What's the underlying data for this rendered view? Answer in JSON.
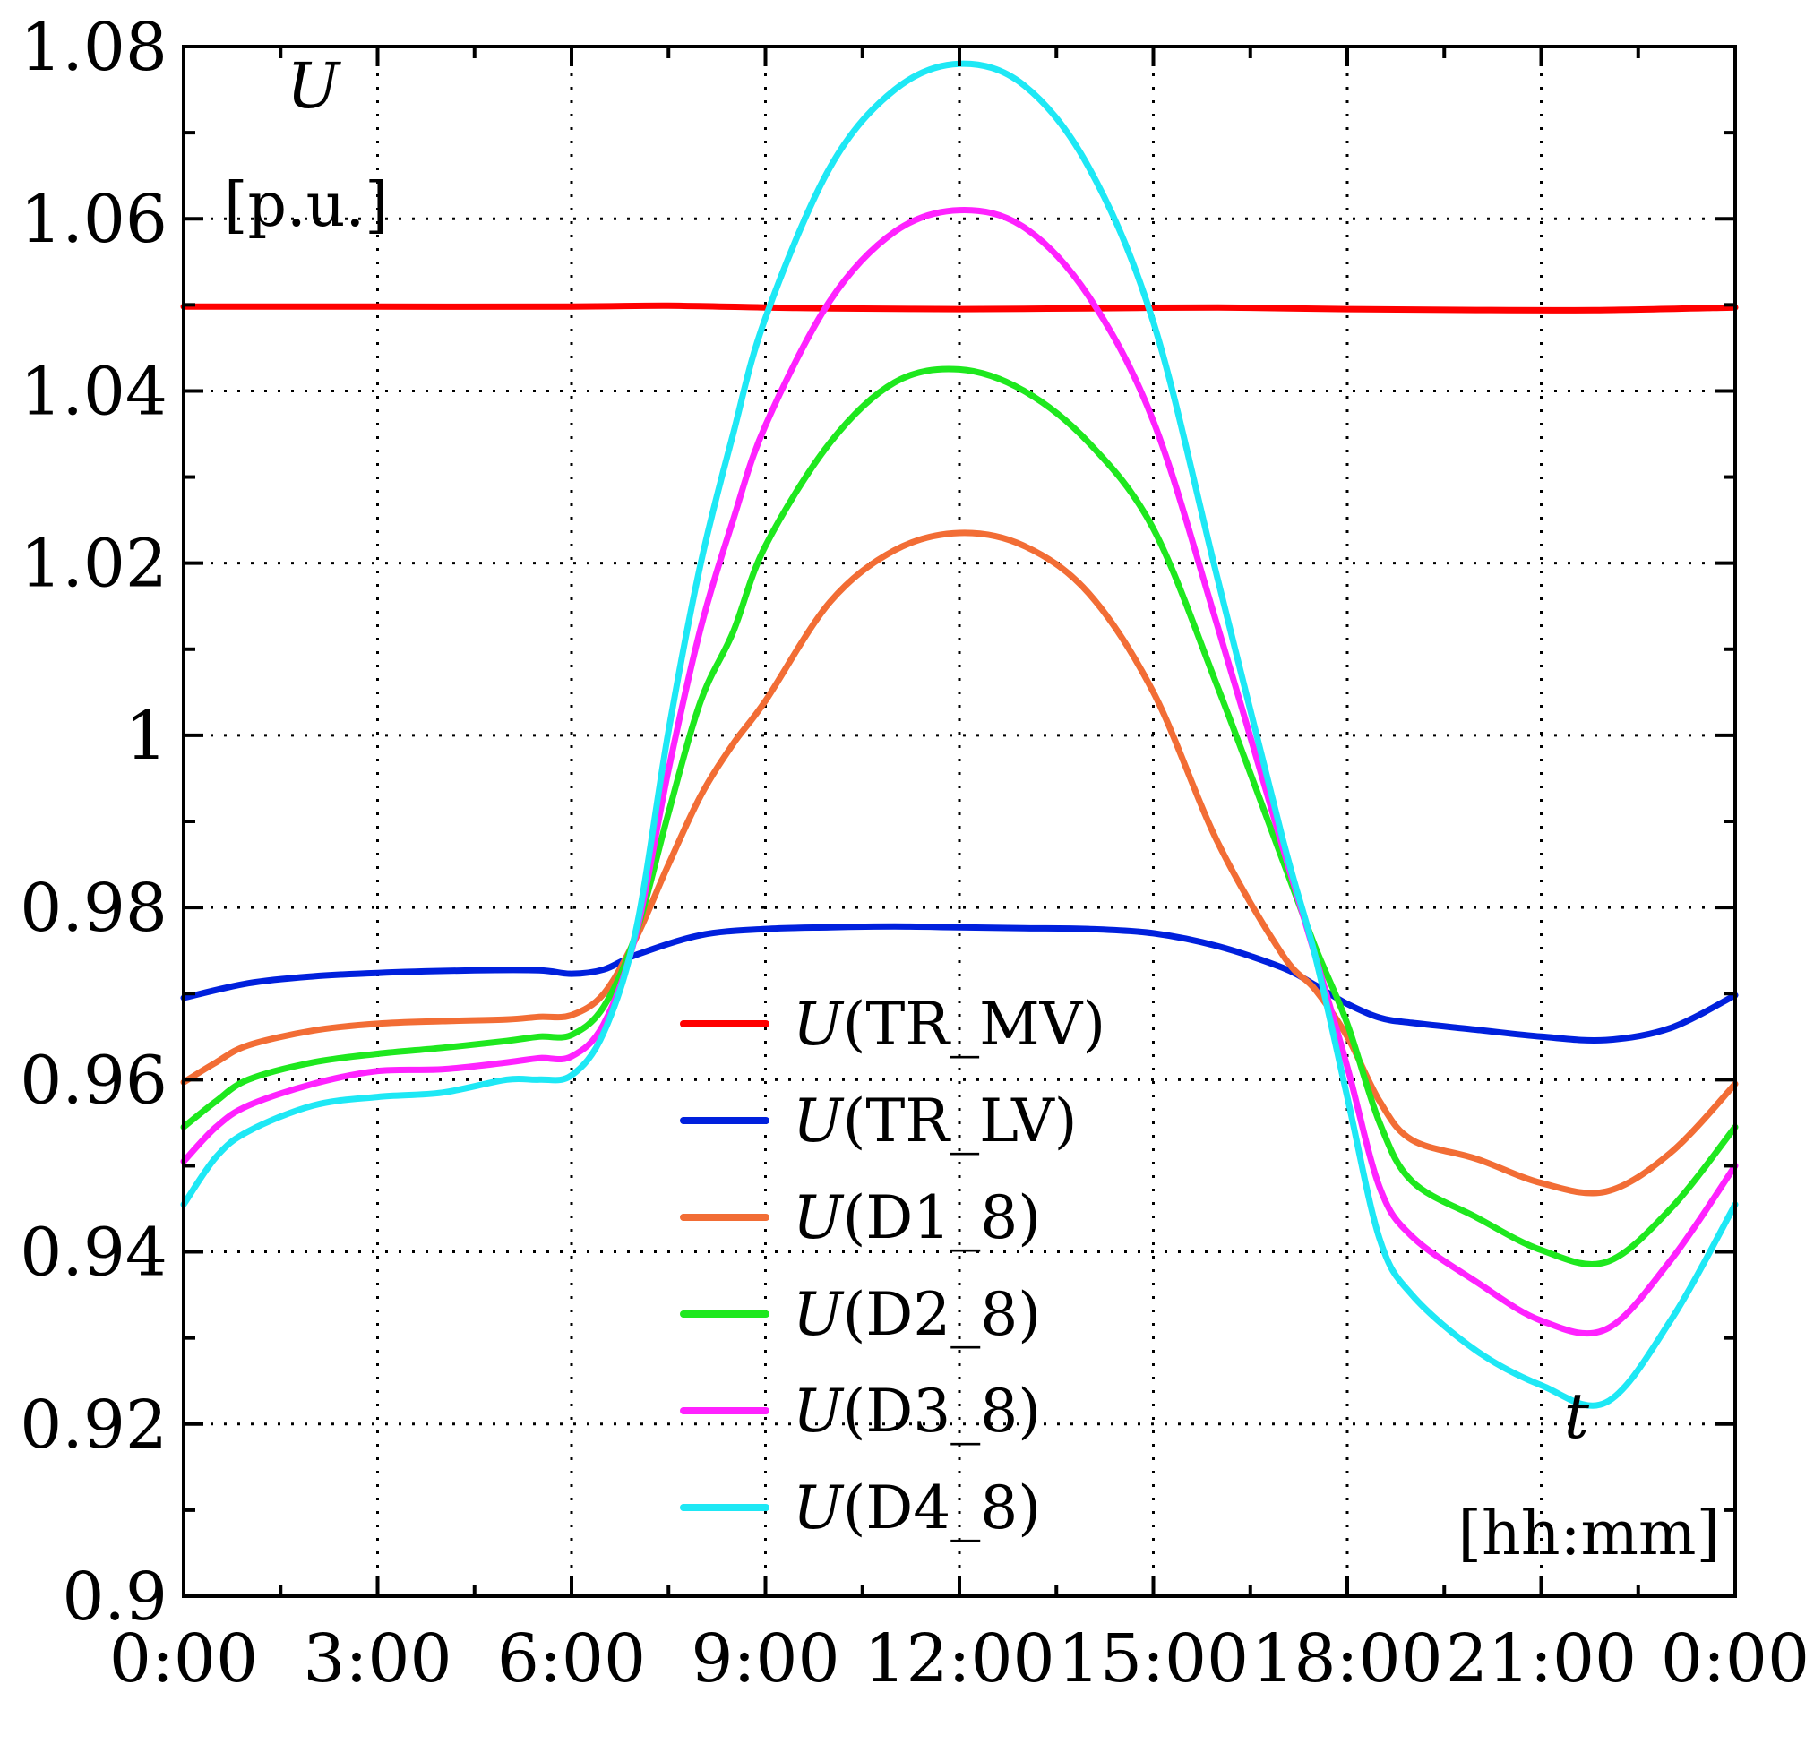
{
  "chart_data": {
    "type": "line",
    "title": "",
    "ylabel_symbol": "U",
    "ylabel_unit": "[p.u.]",
    "xlabel_symbol": "t",
    "xlabel_unit": "[hh:mm]",
    "ylim": [
      0.9,
      1.08
    ],
    "yticks": [
      0.9,
      0.92,
      0.94,
      0.96,
      0.98,
      1.0,
      1.02,
      1.04,
      1.06,
      1.08
    ],
    "ytick_labels": [
      "0.9",
      "0.92",
      "0.94",
      "0.96",
      "0.98",
      "1",
      "1.02",
      "1.04",
      "1.06",
      "1.08"
    ],
    "xlim": [
      0,
      24
    ],
    "xticks": [
      0,
      3,
      6,
      9,
      12,
      15,
      18,
      21,
      24
    ],
    "xtick_labels": [
      "0:00",
      "3:00",
      "6:00",
      "9:00",
      "12:00",
      "15:00",
      "18:00",
      "21:00",
      "0:00"
    ],
    "x_minor_step": 1.5,
    "y_minor_step": 0.01,
    "grid": true,
    "legend_position": "center-bottom",
    "series": [
      {
        "name": "TR_MV",
        "color": "#ff0000",
        "x": [
          0,
          3,
          6,
          7.5,
          9,
          10,
          12,
          14,
          16,
          18,
          20,
          22,
          24
        ],
        "values": [
          1.0498,
          1.0498,
          1.0498,
          1.0499,
          1.0497,
          1.0496,
          1.0495,
          1.0496,
          1.0497,
          1.0495,
          1.0494,
          1.0494,
          1.0497
        ]
      },
      {
        "name": "TR_LV",
        "color": "#0020dd",
        "x": [
          0,
          1,
          2,
          3,
          4.5,
          5.5,
          6,
          6.5,
          7,
          8,
          9,
          10,
          11,
          12,
          13,
          14,
          15,
          16,
          17,
          17.5,
          18,
          18.5,
          19,
          20,
          21,
          22,
          23,
          24
        ],
        "values": [
          0.9695,
          0.9712,
          0.972,
          0.9724,
          0.9727,
          0.9727,
          0.9723,
          0.9728,
          0.9745,
          0.9768,
          0.9775,
          0.9777,
          0.9778,
          0.9777,
          0.9776,
          0.9775,
          0.977,
          0.9755,
          0.973,
          0.971,
          0.9688,
          0.9672,
          0.9666,
          0.9658,
          0.965,
          0.9646,
          0.966,
          0.9698
        ]
      },
      {
        "name": "D1_8",
        "color": "#f26d35",
        "x": [
          0,
          0.5,
          1,
          2,
          3,
          4,
          5,
          5.5,
          6,
          6.5,
          7,
          7.5,
          8,
          8.5,
          9,
          10,
          11,
          12,
          13,
          14,
          15,
          16,
          17,
          17.5,
          18,
          18.5,
          19,
          20,
          21,
          22,
          23,
          24
        ],
        "values": [
          0.9597,
          0.962,
          0.964,
          0.9657,
          0.9665,
          0.9668,
          0.967,
          0.9673,
          0.9675,
          0.97,
          0.9765,
          0.985,
          0.993,
          0.999,
          1.004,
          1.0155,
          1.0215,
          1.0235,
          1.022,
          1.0165,
          1.005,
          0.9875,
          0.9745,
          0.9705,
          0.965,
          0.9575,
          0.953,
          0.9508,
          0.948,
          0.947,
          0.9515,
          0.9595
        ]
      },
      {
        "name": "D2_8",
        "color": "#1ee81e",
        "x": [
          0,
          0.5,
          1,
          2,
          3,
          4,
          5,
          5.5,
          6,
          6.5,
          7,
          7.5,
          8,
          8.5,
          9,
          10,
          11,
          12,
          13,
          14,
          15,
          16,
          17,
          17.5,
          18,
          18.5,
          19,
          20,
          21,
          22,
          23,
          24
        ],
        "values": [
          0.9545,
          0.9575,
          0.96,
          0.962,
          0.963,
          0.9637,
          0.9645,
          0.965,
          0.9652,
          0.9685,
          0.977,
          0.991,
          1.004,
          1.012,
          1.022,
          1.034,
          1.041,
          1.0425,
          1.04,
          1.034,
          1.024,
          1.0055,
          0.9855,
          0.9755,
          0.9665,
          0.955,
          0.9482,
          0.944,
          0.9402,
          0.9388,
          0.945,
          0.9545
        ]
      },
      {
        "name": "D3_8",
        "color": "#ff22ff",
        "x": [
          0,
          0.5,
          1,
          2,
          3,
          4,
          5,
          5.5,
          6,
          6.5,
          7,
          7.5,
          8,
          8.5,
          9,
          10,
          11,
          12,
          13,
          14,
          15,
          16,
          17,
          17.5,
          18,
          18.5,
          19,
          20,
          21,
          22,
          23,
          24
        ],
        "values": [
          0.9505,
          0.9545,
          0.957,
          0.9595,
          0.961,
          0.9612,
          0.962,
          0.9625,
          0.9627,
          0.9665,
          0.977,
          0.996,
          1.0125,
          1.025,
          1.036,
          1.0505,
          1.0585,
          1.061,
          1.059,
          1.051,
          1.0365,
          1.0125,
          0.987,
          0.9745,
          0.9615,
          0.9475,
          0.9418,
          0.9365,
          0.932,
          0.931,
          0.939,
          0.95
        ]
      },
      {
        "name": "D4_8",
        "color": "#1ee8f5",
        "x": [
          0,
          0.5,
          1,
          2,
          3,
          4,
          5,
          5.5,
          6,
          6.5,
          7,
          7.5,
          8,
          8.5,
          9,
          10,
          11,
          12,
          13,
          14,
          15,
          16,
          17,
          17.5,
          18,
          18.5,
          19,
          20,
          21,
          22,
          23,
          24
        ],
        "values": [
          0.9455,
          0.951,
          0.954,
          0.957,
          0.958,
          0.9585,
          0.96,
          0.96,
          0.9605,
          0.9655,
          0.9775,
          1.0005,
          1.02,
          1.035,
          1.0485,
          1.066,
          1.075,
          1.078,
          1.0755,
          1.066,
          1.048,
          1.018,
          0.988,
          0.9745,
          0.958,
          0.9415,
          0.935,
          0.9285,
          0.9245,
          0.9225,
          0.932,
          0.9455
        ]
      }
    ]
  }
}
